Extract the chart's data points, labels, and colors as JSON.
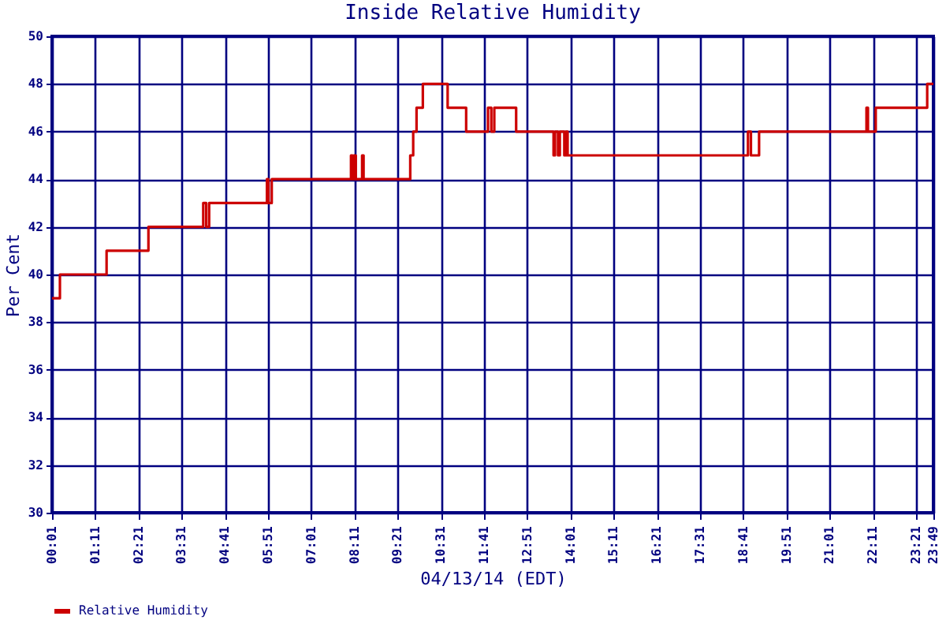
{
  "chart_data": {
    "type": "step",
    "title": "Inside Relative Humidity",
    "xlabel": "04/13/14 (EDT)",
    "ylabel": "Per Cent",
    "x": [
      0.017,
      0.23,
      1.49,
      2.62,
      4.1,
      4.18,
      4.26,
      5.82,
      5.86,
      5.95,
      8.09,
      8.13,
      8.17,
      8.22,
      8.39,
      8.43,
      9.69,
      9.77,
      9.86,
      9.94,
      10.03,
      10.7,
      11.2,
      11.79,
      11.88,
      11.96,
      12.13,
      12.55,
      13.56,
      13.6,
      13.68,
      13.73,
      13.85,
      13.89,
      13.94,
      18.81,
      18.89,
      18.97,
      19.11,
      22.01,
      22.05,
      22.26,
      23.65,
      23.817
    ],
    "series": [
      {
        "name": "Relative Humidity",
        "color": "#cc0000",
        "values": [
          39,
          40,
          41,
          42,
          43,
          42,
          43,
          44,
          43,
          44,
          45,
          44,
          45,
          44,
          45,
          44,
          45,
          46,
          47,
          47,
          48,
          47,
          46,
          47,
          46,
          47,
          47,
          46,
          45,
          46,
          45,
          46,
          45,
          46,
          45,
          46,
          45,
          45,
          46,
          47,
          46,
          47,
          48,
          48
        ]
      }
    ],
    "xlim": [
      0.017,
      23.817
    ],
    "xticks": [
      {
        "value": 0.017,
        "label": "00:01"
      },
      {
        "value": 1.183,
        "label": "01:11"
      },
      {
        "value": 2.35,
        "label": "02:21"
      },
      {
        "value": 3.517,
        "label": "03:31"
      },
      {
        "value": 4.683,
        "label": "04:41"
      },
      {
        "value": 5.85,
        "label": "05:51"
      },
      {
        "value": 7.017,
        "label": "07:01"
      },
      {
        "value": 8.183,
        "label": "08:11"
      },
      {
        "value": 9.35,
        "label": "09:21"
      },
      {
        "value": 10.517,
        "label": "10:31"
      },
      {
        "value": 11.683,
        "label": "11:41"
      },
      {
        "value": 12.85,
        "label": "12:51"
      },
      {
        "value": 14.017,
        "label": "14:01"
      },
      {
        "value": 15.183,
        "label": "15:11"
      },
      {
        "value": 16.35,
        "label": "16:21"
      },
      {
        "value": 17.517,
        "label": "17:31"
      },
      {
        "value": 18.683,
        "label": "18:41"
      },
      {
        "value": 19.85,
        "label": "19:51"
      },
      {
        "value": 21.017,
        "label": "21:01"
      },
      {
        "value": 22.183,
        "label": "22:11"
      },
      {
        "value": 23.35,
        "label": "23:21"
      },
      {
        "value": 23.817,
        "label": "23:49"
      }
    ],
    "ylim": [
      30,
      50
    ],
    "yticks": [
      30,
      32,
      34,
      36,
      38,
      40,
      42,
      44,
      46,
      48,
      50
    ],
    "grid": true,
    "legend": "bottom",
    "line_style": "solid",
    "marker": "none"
  }
}
